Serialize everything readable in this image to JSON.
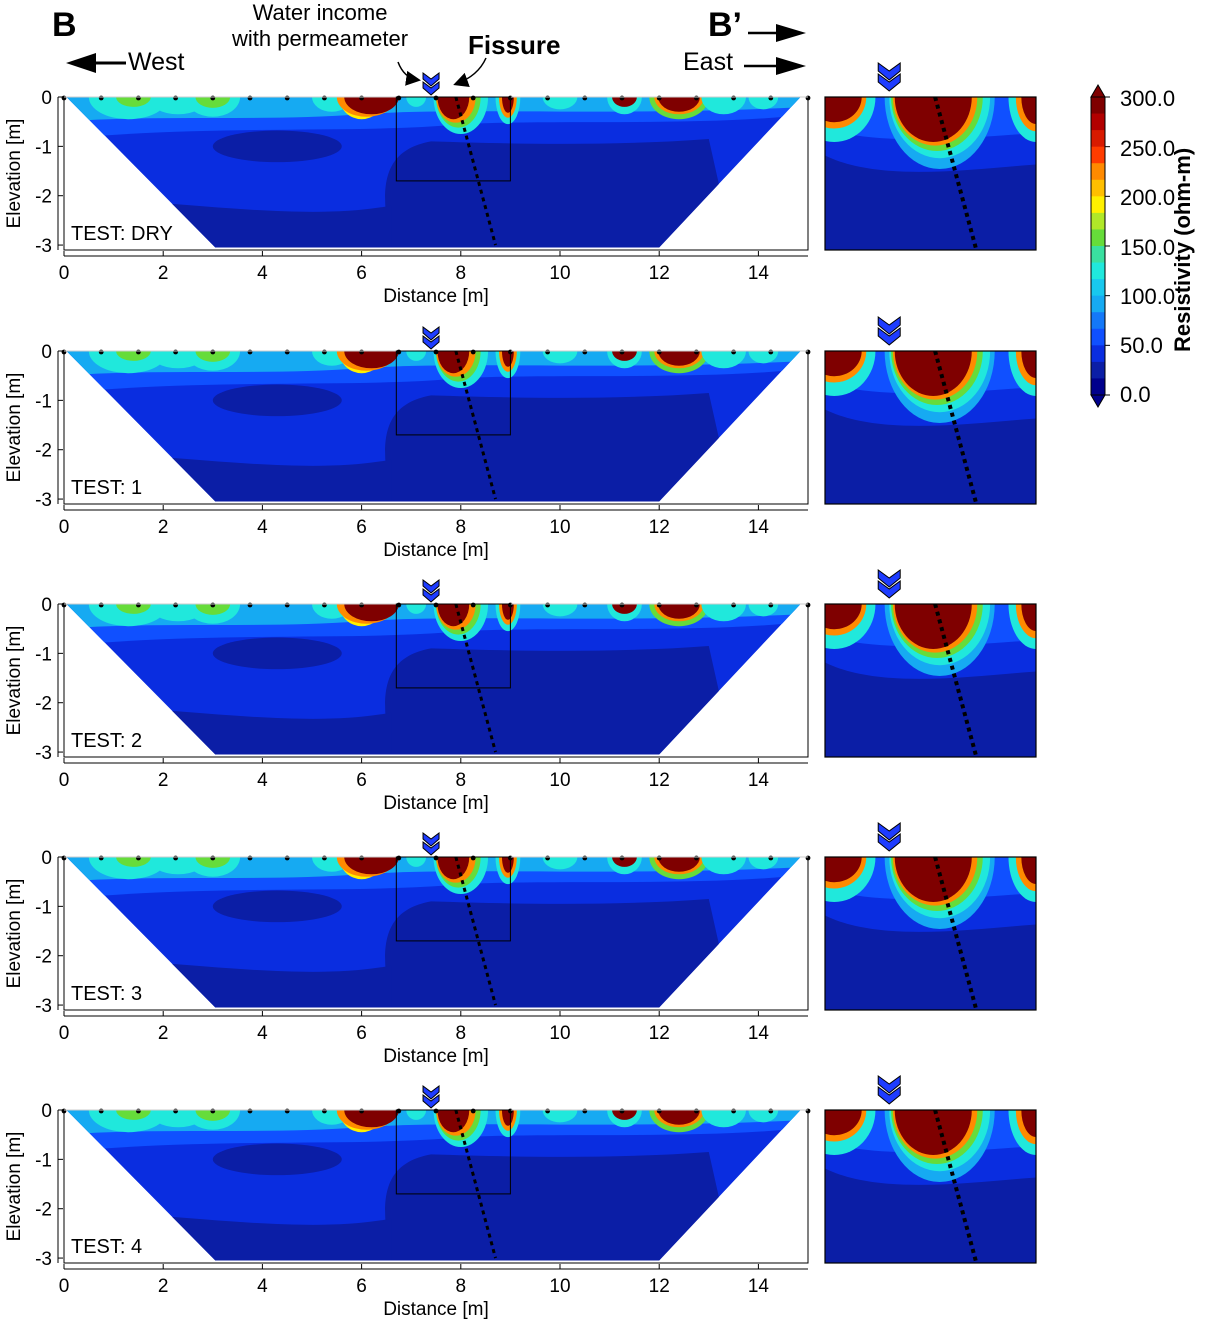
{
  "header": {
    "left_section": "B",
    "right_section": "B’",
    "west_label": "West",
    "east_label": "East",
    "water_income_line1": "Water income",
    "water_income_line2": "with permeameter",
    "fissure_label": "Fissure"
  },
  "colors": {
    "dark_red": "#7f0000",
    "red": "#d81a00",
    "orange": "#ff8a00",
    "yellow": "#fff000",
    "green": "#66dc3a",
    "cyan": "#20e8dc",
    "light_blue": "#16aaf2",
    "blue": "#1050ff",
    "mid_blue": "#0a2de0",
    "navy": "#0b1ea6",
    "dark_navy": "#00008c"
  },
  "colorbar": {
    "title": "Resistivity (ohm-m)",
    "ticks": [
      "300.0",
      "250.0",
      "200.0",
      "150.0",
      "100.0",
      "50.0",
      "0.0"
    ]
  },
  "chart_data": [
    {
      "type": "heatmap",
      "panel": "TEST: DRY",
      "xlabel": "Distance [m]",
      "ylabel": "Elevation [m]",
      "xlim": [
        0,
        15
      ],
      "ylim": [
        -3.1,
        0
      ],
      "xticks": [
        "0",
        "2",
        "4",
        "6",
        "8",
        "10",
        "12",
        "14"
      ],
      "yticks": [
        "0",
        "-1",
        "-2",
        "-3"
      ],
      "fissure_line": [
        [
          7.9,
          0
        ],
        [
          8.7,
          -3.0
        ]
      ],
      "zoom_window_x": [
        6.7,
        9.0
      ],
      "zoom_window_y": [
        -1.7,
        0
      ],
      "permeameter_x": 7.4,
      "zlim": [
        0,
        300
      ],
      "zunit": "ohm-m"
    },
    {
      "type": "heatmap",
      "panel": "TEST: 1",
      "xlabel": "Distance [m]",
      "ylabel": "Elevation [m]",
      "xlim": [
        0,
        15
      ],
      "ylim": [
        -3.1,
        0
      ],
      "xticks": [
        "0",
        "2",
        "4",
        "6",
        "8",
        "10",
        "12",
        "14"
      ],
      "yticks": [
        "0",
        "-1",
        "-2",
        "-3"
      ],
      "fissure_line": [
        [
          7.9,
          0
        ],
        [
          8.7,
          -3.0
        ]
      ],
      "zoom_window_x": [
        6.7,
        9.0
      ],
      "zoom_window_y": [
        -1.7,
        0
      ],
      "permeameter_x": 7.4,
      "zlim": [
        0,
        300
      ],
      "zunit": "ohm-m"
    },
    {
      "type": "heatmap",
      "panel": "TEST: 2",
      "xlabel": "Distance [m]",
      "ylabel": "Elevation [m]",
      "xlim": [
        0,
        15
      ],
      "ylim": [
        -3.1,
        0
      ],
      "xticks": [
        "0",
        "2",
        "4",
        "6",
        "8",
        "10",
        "12",
        "14"
      ],
      "yticks": [
        "0",
        "-1",
        "-2",
        "-3"
      ],
      "fissure_line": [
        [
          7.9,
          0
        ],
        [
          8.7,
          -3.0
        ]
      ],
      "zoom_window_x": [
        6.7,
        9.0
      ],
      "zoom_window_y": [
        -1.7,
        0
      ],
      "permeameter_x": 7.4,
      "zlim": [
        0,
        300
      ],
      "zunit": "ohm-m"
    },
    {
      "type": "heatmap",
      "panel": "TEST: 3",
      "xlabel": "Distance [m]",
      "ylabel": "Elevation [m]",
      "xlim": [
        0,
        15
      ],
      "ylim": [
        -3.1,
        0
      ],
      "xticks": [
        "0",
        "2",
        "4",
        "6",
        "8",
        "10",
        "12",
        "14"
      ],
      "yticks": [
        "0",
        "-1",
        "-2",
        "-3"
      ],
      "fissure_line": [
        [
          7.9,
          0
        ],
        [
          8.7,
          -3.0
        ]
      ],
      "zoom_window_x": [
        6.7,
        9.0
      ],
      "zoom_window_y": [
        -1.7,
        0
      ],
      "permeameter_x": 7.4,
      "zlim": [
        0,
        300
      ],
      "zunit": "ohm-m"
    },
    {
      "type": "heatmap",
      "panel": "TEST: 4",
      "xlabel": "Distance [m]",
      "ylabel": "Elevation [m]",
      "xlim": [
        0,
        15
      ],
      "ylim": [
        -3.1,
        0
      ],
      "xticks": [
        "0",
        "2",
        "4",
        "6",
        "8",
        "10",
        "12",
        "14"
      ],
      "yticks": [
        "0",
        "-1",
        "-2",
        "-3"
      ],
      "fissure_line": [
        [
          7.9,
          0
        ],
        [
          8.7,
          -3.0
        ]
      ],
      "zoom_window_x": [
        6.7,
        9.0
      ],
      "zoom_window_y": [
        -1.7,
        0
      ],
      "permeameter_x": 7.4,
      "zlim": [
        0,
        300
      ],
      "zunit": "ohm-m"
    }
  ]
}
